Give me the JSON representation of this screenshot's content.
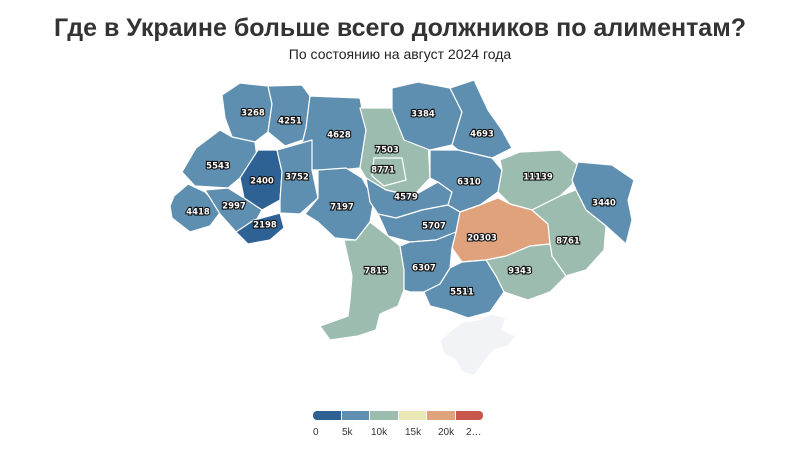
{
  "title": "Где в Украине больше всего должников по алиментам?",
  "subtitle": "По состоянию на август 2024 года",
  "colors": {
    "scale": [
      "#2e6295",
      "#5e8fb0",
      "#9bbcae",
      "#eae8b5",
      "#e0a27d",
      "#c9564b"
    ],
    "no_data": "#f2f3f6"
  },
  "legend": {
    "ticks": [
      "0",
      "5k",
      "10k",
      "15k",
      "20k",
      "2…"
    ]
  },
  "regions": [
    {
      "id": "volyn",
      "value": 3268
    },
    {
      "id": "rivne",
      "value": 4251
    },
    {
      "id": "zhytomyr",
      "value": 4628
    },
    {
      "id": "kyiv-oblast",
      "value": 7503
    },
    {
      "id": "chernihiv",
      "value": 3384
    },
    {
      "id": "sumy",
      "value": 4693
    },
    {
      "id": "lviv",
      "value": 5543
    },
    {
      "id": "ternopil",
      "value": 2400
    },
    {
      "id": "khmelnytskyi",
      "value": 3752
    },
    {
      "id": "zakarpattia",
      "value": 4418
    },
    {
      "id": "ivano-frankivsk",
      "value": 2997
    },
    {
      "id": "chernivtsi",
      "value": 2198
    },
    {
      "id": "vinnytsia",
      "value": 7197
    },
    {
      "id": "kyiv-city",
      "value": 8771
    },
    {
      "id": "cherkasy",
      "value": 4579
    },
    {
      "id": "poltava",
      "value": 6310
    },
    {
      "id": "kharkiv",
      "value": 11139
    },
    {
      "id": "luhansk",
      "value": 3440
    },
    {
      "id": "kirovohrad",
      "value": 5707
    },
    {
      "id": "dnipropetrovsk",
      "value": 20303
    },
    {
      "id": "donetsk",
      "value": 8761
    },
    {
      "id": "odesa",
      "value": 7815
    },
    {
      "id": "mykolaiv",
      "value": 6307
    },
    {
      "id": "zaporizhzhia",
      "value": 9343
    },
    {
      "id": "kherson",
      "value": 5511
    },
    {
      "id": "crimea",
      "value": null
    }
  ]
}
